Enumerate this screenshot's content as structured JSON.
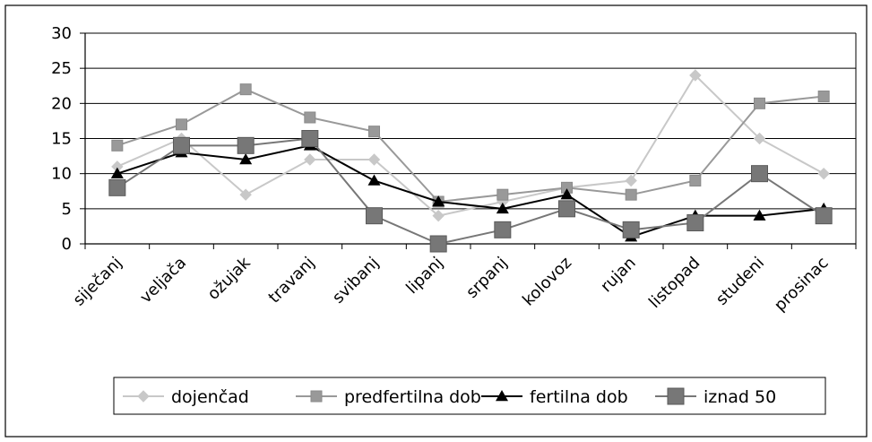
{
  "chart_data": {
    "type": "line",
    "categories": [
      "siječanj",
      "veljača",
      "ožujak",
      "travanj",
      "svibanj",
      "lipanj",
      "srpanj",
      "kolovoz",
      "rujan",
      "listopad",
      "studeni",
      "prosinac"
    ],
    "ylim": [
      0,
      30
    ],
    "yticks": [
      0,
      5,
      10,
      15,
      20,
      25,
      30
    ],
    "grid": "horizontal",
    "legend_position": "bottom",
    "series": [
      {
        "name": "dojenčad",
        "marker": "diamond",
        "color": "#c8c8c8",
        "values": [
          11,
          15,
          7,
          12,
          12,
          4,
          6,
          8,
          9,
          24,
          15,
          10
        ]
      },
      {
        "name": "predfertilna dob",
        "marker": "square",
        "color": "#999999",
        "values": [
          14,
          17,
          22,
          18,
          16,
          6,
          7,
          8,
          7,
          9,
          20,
          21
        ]
      },
      {
        "name": "fertilna dob",
        "marker": "triangle",
        "color": "#000000",
        "values": [
          10,
          13,
          12,
          14,
          9,
          6,
          5,
          7,
          1,
          4,
          4,
          5
        ]
      },
      {
        "name": "iznad 50",
        "marker": "big-square",
        "color": "#777777",
        "values": [
          8,
          14,
          14,
          15,
          4,
          0,
          2,
          5,
          2,
          3,
          10,
          4
        ]
      }
    ]
  }
}
